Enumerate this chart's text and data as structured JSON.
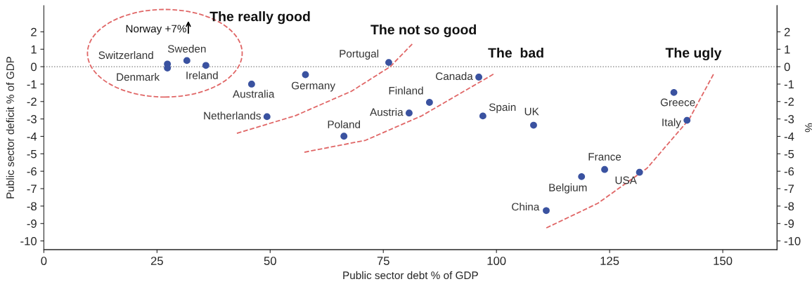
{
  "chart_data": {
    "type": "scatter",
    "xlabel": "Public sector debt % of GDP",
    "ylabel": "Public sector deficit % of GDP",
    "y2label": "%",
    "series": [
      {
        "color": "#3a52a0",
        "x": [
          27.3,
          27.3,
          31.6,
          35.8,
          45.9,
          57.8,
          49.3,
          66.3,
          76.2,
          80.7,
          85.2,
          96.1,
          97.0,
          108.2,
          139.2,
          142.1,
          123.9,
          118.8,
          131.6,
          111.0
        ],
        "values": [
          0.15,
          -0.08,
          0.35,
          0.07,
          -1.0,
          -0.46,
          -2.87,
          -3.99,
          0.24,
          -2.66,
          -2.05,
          -0.6,
          -2.83,
          -3.36,
          -1.48,
          -3.08,
          -5.9,
          -6.31,
          -6.06,
          -8.26
        ]
      }
    ],
    "annotations": [
      {
        "text": "Switzerland",
        "x": 27.3,
        "y": 0.15
      },
      {
        "text": "Denmark",
        "x": 27.3,
        "y": -0.08
      },
      {
        "text": "Sweden",
        "x": 31.6,
        "y": 0.35
      },
      {
        "text": "Ireland",
        "x": 35.8,
        "y": 0.07
      },
      {
        "text": "Australia",
        "x": 45.9,
        "y": -1.0
      },
      {
        "text": "Germany",
        "x": 57.8,
        "y": -0.46
      },
      {
        "text": "Netherlands",
        "x": 49.3,
        "y": -2.87
      },
      {
        "text": "Poland",
        "x": 66.3,
        "y": -3.99
      },
      {
        "text": "Portugal",
        "x": 76.2,
        "y": 0.24
      },
      {
        "text": "Austria",
        "x": 80.7,
        "y": -2.66
      },
      {
        "text": "Finland",
        "x": 85.2,
        "y": -2.05
      },
      {
        "text": "Canada",
        "x": 96.1,
        "y": -0.6
      },
      {
        "text": "Spain",
        "x": 97.0,
        "y": -2.83
      },
      {
        "text": "UK",
        "x": 108.2,
        "y": -3.36
      },
      {
        "text": "Greece",
        "x": 139.2,
        "y": -1.48
      },
      {
        "text": "Italy",
        "x": 142.1,
        "y": -3.08
      },
      {
        "text": "France",
        "x": 123.9,
        "y": -5.9
      },
      {
        "text": "Belgium",
        "x": 118.8,
        "y": -6.31
      },
      {
        "text": "USA",
        "x": 131.6,
        "y": -6.06
      },
      {
        "text": "China",
        "x": 111.0,
        "y": -8.26
      },
      "Norway +7%",
      "The really good",
      "The not so good",
      "The  bad",
      "The ugly"
    ],
    "ref_lines": [
      {
        "axis": "y",
        "value": 0,
        "color": "#777777",
        "line_style": "dotted"
      }
    ],
    "xlim": [
      0,
      162
    ],
    "xticks": [
      0,
      25,
      50,
      75,
      100,
      125,
      150
    ],
    "ylim": [
      -10.5,
      3.5
    ],
    "yticks": [
      -10,
      -9,
      -8,
      -7,
      -6,
      -5,
      -4,
      -3,
      -2,
      -1,
      0,
      1,
      2
    ],
    "y2lim": [
      -10.5,
      3.5
    ],
    "y2ticks": [
      -10,
      -9,
      -8,
      -7,
      -6,
      -5,
      -4,
      -3,
      -2,
      -1,
      0,
      1,
      2
    ],
    "marker": "circle",
    "grid": false,
    "legend": false
  }
}
